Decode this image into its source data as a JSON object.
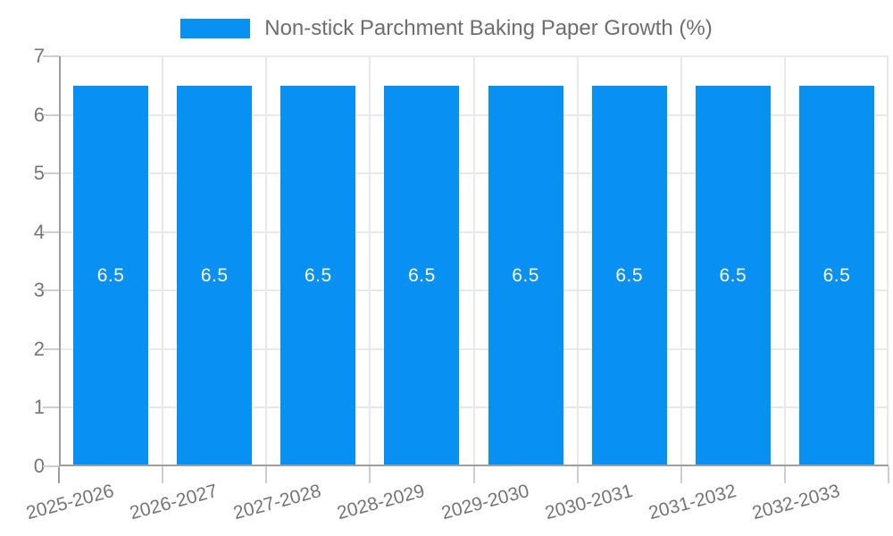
{
  "chart_data": {
    "type": "bar",
    "title": "Non-stick Parchment Baking Paper Growth (%)",
    "categories": [
      "2025-2026",
      "2026-2027",
      "2027-2028",
      "2028-2029",
      "2029-2030",
      "2030-2031",
      "2031-2032",
      "2032-2033"
    ],
    "values": [
      6.5,
      6.5,
      6.5,
      6.5,
      6.5,
      6.5,
      6.5,
      6.5
    ],
    "bar_labels": [
      "6.5",
      "6.5",
      "6.5",
      "6.5",
      "6.5",
      "6.5",
      "6.5",
      "6.5"
    ],
    "xlabel": "",
    "ylabel": "",
    "ylim": [
      0,
      7
    ],
    "yticks": [
      0,
      1,
      2,
      3,
      4,
      5,
      6,
      7
    ],
    "grid": true,
    "legend_position": "top",
    "x_label_rotation_deg": -15
  },
  "colors": {
    "bar": "#0990f3",
    "bar_label": "#ffffff",
    "axis_line": "#9e9e9e",
    "gridline": "#e9e9e9",
    "tick": "#cfcfcf",
    "axis_text": "#757575",
    "legend_text": "#6e6e6e",
    "background": "#ffffff"
  }
}
